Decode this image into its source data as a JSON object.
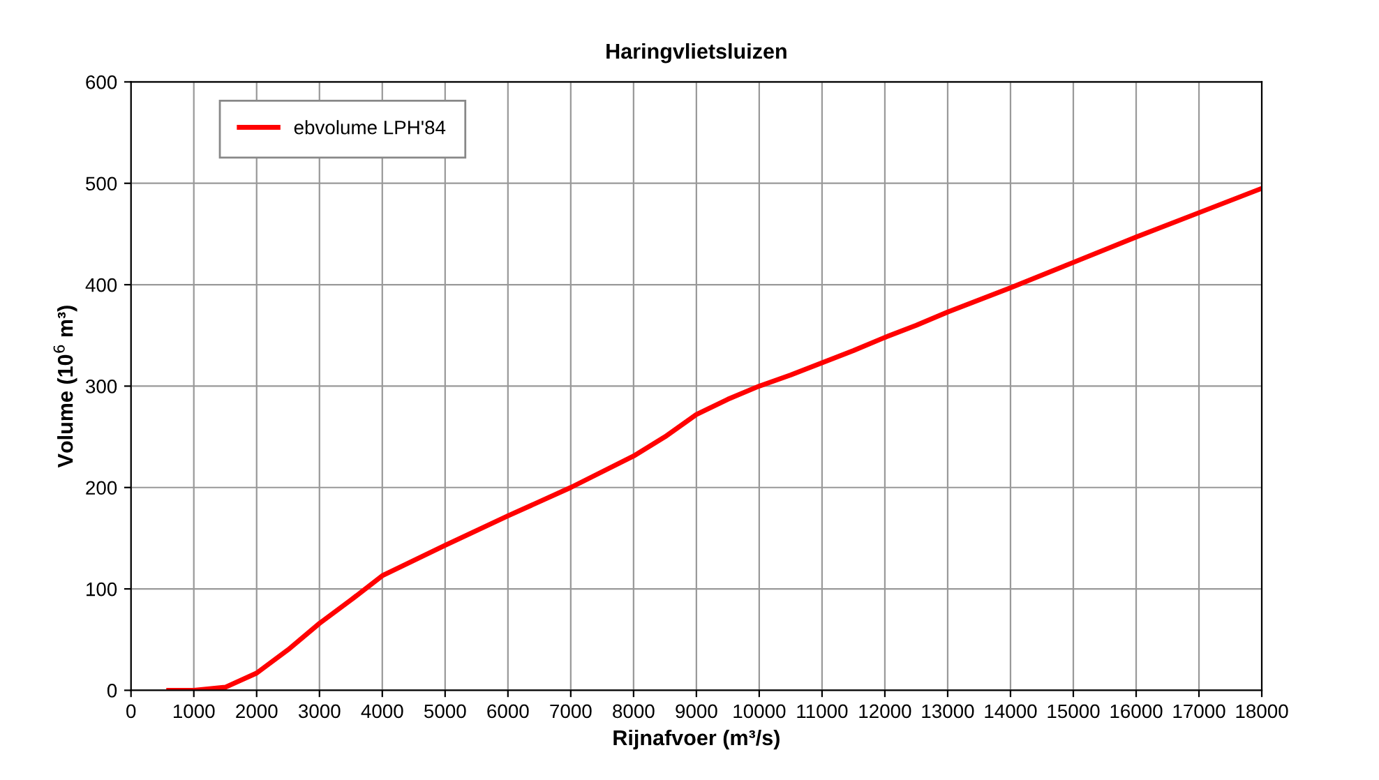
{
  "chart_data": {
    "type": "line",
    "title": "Haringvlietsluizen",
    "xlabel": "Rijnafvoer (m³/s)",
    "ylabel": "Volume (10$^{6}$ m³)",
    "series": [
      {
        "name": "ebvolume LPH'84",
        "color": "#ff0000",
        "x": [
          600,
          1000,
          1500,
          2000,
          2500,
          3000,
          3500,
          4000,
          5000,
          6000,
          7000,
          8000,
          8500,
          9000,
          9500,
          10000,
          10500,
          11000,
          11500,
          12000,
          12500,
          13000,
          14000,
          15000,
          16000,
          17000,
          18000
        ],
        "values": [
          0,
          0,
          3,
          17,
          40,
          66,
          89,
          113,
          143,
          172,
          200,
          231,
          250,
          272,
          287,
          300,
          311,
          323,
          335,
          348,
          360,
          373,
          397,
          422,
          447,
          471,
          495
        ]
      }
    ],
    "xlim": [
      0,
      18000
    ],
    "xticks": [
      0,
      1000,
      2000,
      3000,
      4000,
      5000,
      6000,
      7000,
      8000,
      9000,
      10000,
      11000,
      12000,
      13000,
      14000,
      15000,
      16000,
      17000,
      18000
    ],
    "ylim": [
      0,
      600
    ],
    "yticks": [
      0,
      100,
      200,
      300,
      400,
      500,
      600
    ],
    "grid": true,
    "legend": "top left",
    "marker": "none",
    "line_style": "solid"
  }
}
